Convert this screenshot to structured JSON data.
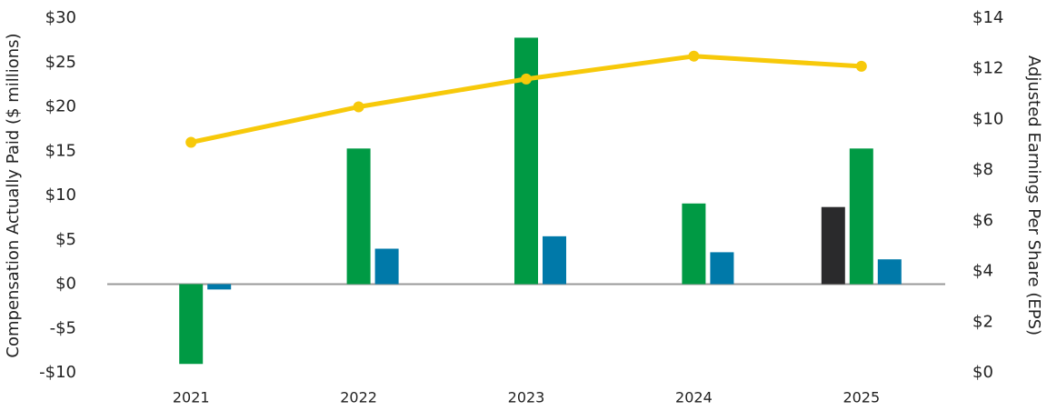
{
  "chart_data": {
    "type": "bar",
    "y_label": "Compensation Actually Paid ($ millions)",
    "y2_label": "Adjusted Earnings Per Share (EPS)",
    "categories": [
      "2021",
      "2022",
      "2023",
      "2024",
      "2025"
    ],
    "series": [
      {
        "color": "#2a2a2c",
        "values": [
          null,
          null,
          null,
          null,
          8.7
        ]
      },
      {
        "color": "#009a44",
        "values": [
          -9.0,
          15.3,
          27.8,
          9.1,
          15.3
        ]
      },
      {
        "color": "#0079a9",
        "values": [
          -0.6,
          4.0,
          5.4,
          3.6,
          2.8
        ]
      },
      {
        "type": "line",
        "axis": "y2",
        "color": "#f7c90a",
        "values": [
          9.1,
          10.5,
          11.6,
          12.5,
          12.1
        ]
      }
    ],
    "ylim": [
      -10,
      30
    ],
    "yticks": [
      {
        "value": -10,
        "label": "-$10"
      },
      {
        "value": -5,
        "label": "-$5"
      },
      {
        "value": 0,
        "label": "$0"
      },
      {
        "value": 5,
        "label": "$5"
      },
      {
        "value": 10,
        "label": "$10"
      },
      {
        "value": 15,
        "label": "$15"
      },
      {
        "value": 20,
        "label": "$20"
      },
      {
        "value": 25,
        "label": "$25"
      },
      {
        "value": 30,
        "label": "$30"
      }
    ],
    "y2lim": [
      0,
      14
    ],
    "y2ticks": [
      {
        "value": 0,
        "label": "$0"
      },
      {
        "value": 2,
        "label": "$2"
      },
      {
        "value": 4,
        "label": "$4"
      },
      {
        "value": 6,
        "label": "$6"
      },
      {
        "value": 8,
        "label": "$8"
      },
      {
        "value": 10,
        "label": "$10"
      },
      {
        "value": 12,
        "label": "$12"
      },
      {
        "value": 14,
        "label": "$14"
      }
    ],
    "grid": false
  }
}
